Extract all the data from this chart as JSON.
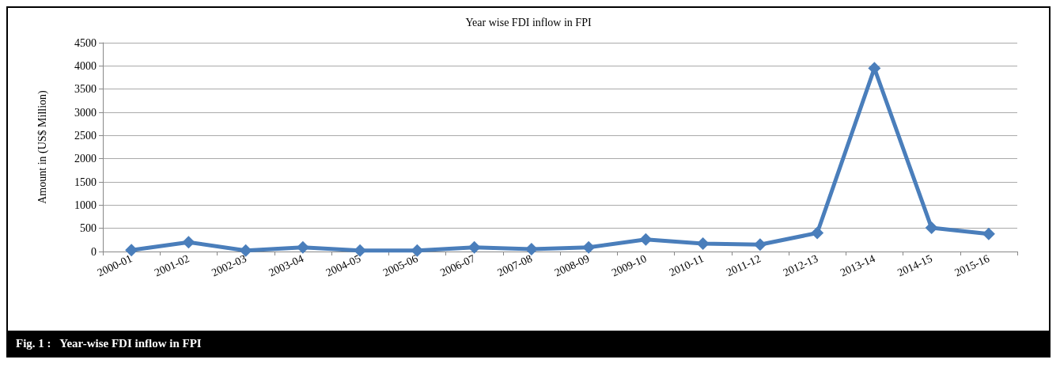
{
  "chart_data": {
    "type": "line",
    "title": "Year wise FDI inflow in FPI",
    "ylabel": "Amount in (US$ Million)",
    "categories": [
      "2000-01",
      "2001-02",
      "2002-03",
      "2003-04",
      "2004-05",
      "2005-06",
      "2006-07",
      "2007-08",
      "2008-09",
      "2009-10",
      "2010-11",
      "2011-12",
      "2012-13",
      "2013-14",
      "2014-15",
      "2015-16"
    ],
    "series": [
      {
        "color": "#4a7ebb",
        "values": [
          30,
          200,
          20,
          90,
          20,
          20,
          90,
          50,
          90,
          260,
          170,
          150,
          400,
          3950,
          510,
          380
        ]
      }
    ],
    "ylim": [
      0,
      4500
    ],
    "yticks": [
      0,
      500,
      1000,
      1500,
      2000,
      2500,
      3000,
      3500,
      4000,
      4500
    ],
    "grid": "y",
    "marker": "diamond",
    "line_style": "solid",
    "annotations": [
      "Fig. 1 :   Year-wise FDI inflow in FPI"
    ]
  }
}
